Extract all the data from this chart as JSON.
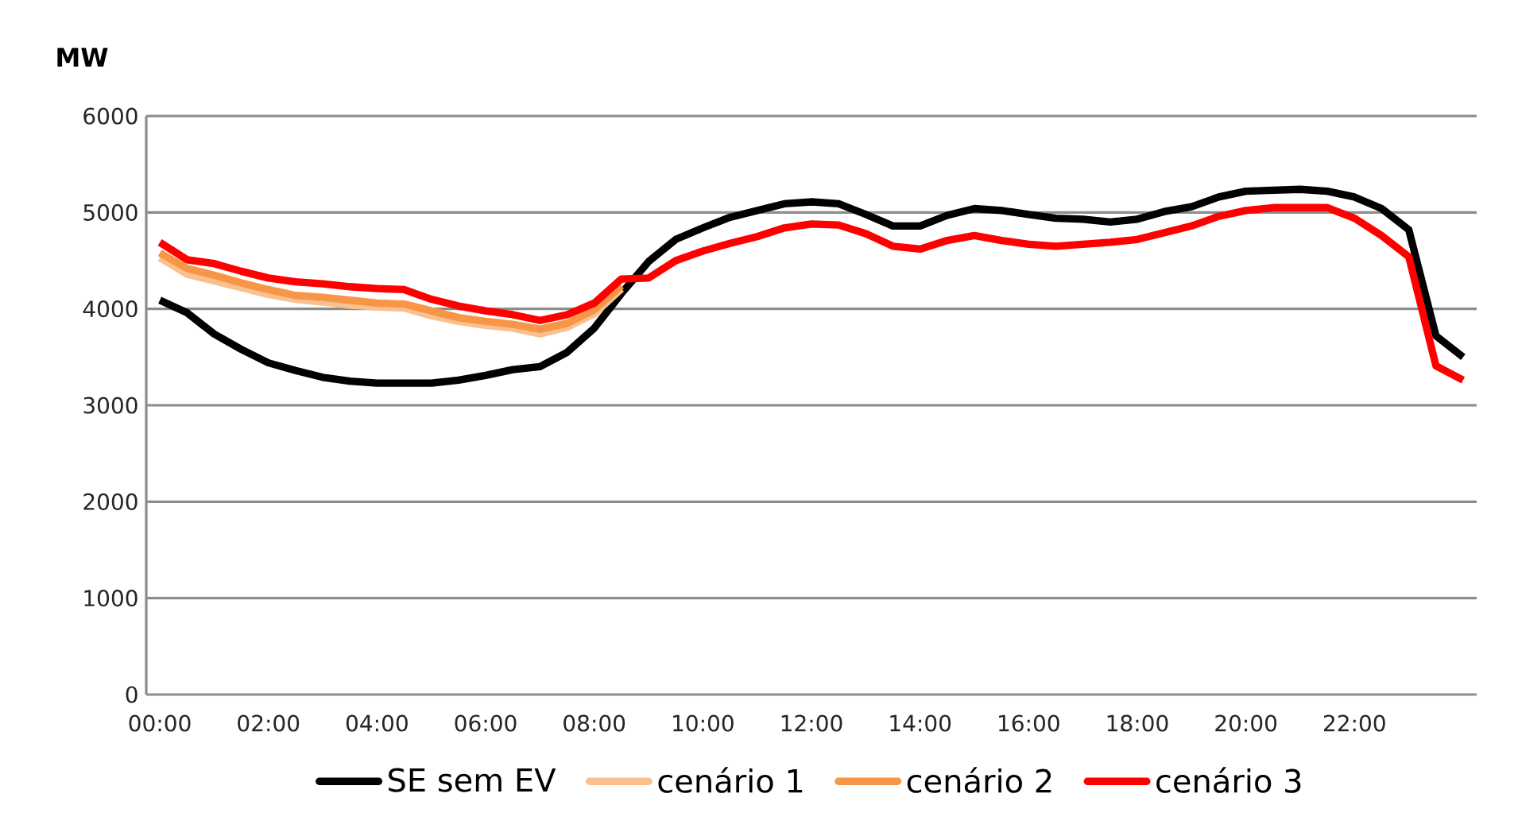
{
  "chart_data": {
    "type": "line",
    "ylabel": "MW",
    "x": [
      0,
      0.5,
      1,
      1.5,
      2,
      2.5,
      3,
      3.5,
      4,
      4.5,
      5,
      5.5,
      6,
      6.5,
      7,
      7.5,
      8,
      8.5,
      9,
      9.5,
      10,
      10.5,
      11,
      11.5,
      12,
      12.5,
      13,
      13.5,
      14,
      14.5,
      15,
      15.5,
      16,
      16.5,
      17,
      17.5,
      18,
      18.5,
      19,
      19.5,
      20,
      20.5,
      21,
      21.5,
      22,
      22.5,
      23,
      23.5,
      24
    ],
    "xlim": [
      -0.25,
      24.25
    ],
    "xticks": [
      {
        "value": 0,
        "label": "00:00"
      },
      {
        "value": 2,
        "label": "02:00"
      },
      {
        "value": 4,
        "label": "04:00"
      },
      {
        "value": 6,
        "label": "06:00"
      },
      {
        "value": 8,
        "label": "08:00"
      },
      {
        "value": 10,
        "label": "10:00"
      },
      {
        "value": 12,
        "label": "12:00"
      },
      {
        "value": 14,
        "label": "14:00"
      },
      {
        "value": 16,
        "label": "16:00"
      },
      {
        "value": 18,
        "label": "18:00"
      },
      {
        "value": 20,
        "label": "20:00"
      },
      {
        "value": 22,
        "label": "22:00"
      }
    ],
    "ylim": [
      0,
      6000
    ],
    "yticks": [
      0,
      1000,
      2000,
      3000,
      4000,
      5000,
      6000
    ],
    "grid": "y",
    "legend": "bottom",
    "line_style": "solid",
    "marker": "none",
    "series": [
      {
        "name": "SE sem EV",
        "color": "#000000",
        "values": [
          4090,
          3960,
          3740,
          3580,
          3440,
          3360,
          3290,
          3250,
          3230,
          3230,
          3230,
          3260,
          3310,
          3370,
          3400,
          3550,
          3800,
          4160,
          4490,
          4720,
          4840,
          4950,
          5020,
          5090,
          5110,
          5090,
          4980,
          4860,
          4860,
          4970,
          5040,
          5020,
          4980,
          4940,
          4930,
          4900,
          4930,
          5010,
          5060,
          5160,
          5220,
          5230,
          5240,
          5220,
          5160,
          5040,
          4820,
          3720,
          3500
        ]
      },
      {
        "name": "cenário 1",
        "color": "#fac090",
        "values": [
          4530,
          4360,
          4290,
          4220,
          4150,
          4100,
          4070,
          4040,
          4020,
          4010,
          3930,
          3870,
          3830,
          3800,
          3740,
          3810,
          3950,
          4210,
          null,
          null,
          null,
          null,
          null,
          null,
          null,
          null,
          null,
          null,
          null,
          null,
          null,
          null,
          null,
          null,
          null,
          null,
          null,
          null,
          null,
          null,
          null,
          null,
          null,
          null,
          null,
          null,
          null,
          null,
          null
        ]
      },
      {
        "name": "cenário 2",
        "color": "#f79646",
        "values": [
          4580,
          4420,
          4350,
          4270,
          4200,
          4140,
          4120,
          4090,
          4060,
          4050,
          3980,
          3910,
          3870,
          3840,
          3790,
          3850,
          3990,
          4240,
          null,
          null,
          null,
          null,
          null,
          null,
          null,
          null,
          null,
          null,
          null,
          null,
          null,
          null,
          null,
          null,
          null,
          null,
          null,
          null,
          null,
          null,
          null,
          null,
          null,
          null,
          null,
          null,
          null,
          null,
          null
        ]
      },
      {
        "name": "cenário 3",
        "color": "#ff0000",
        "values": [
          4690,
          4510,
          4470,
          4390,
          4320,
          4280,
          4260,
          4230,
          4210,
          4200,
          4100,
          4030,
          3980,
          3940,
          3880,
          3940,
          4060,
          4310,
          4320,
          4500,
          4600,
          4680,
          4750,
          4840,
          4880,
          4870,
          4780,
          4650,
          4620,
          4710,
          4760,
          4710,
          4670,
          4650,
          4670,
          4690,
          4720,
          4790,
          4860,
          4960,
          5020,
          5050,
          5050,
          5050,
          4940,
          4760,
          4540,
          3410,
          3260
        ]
      }
    ]
  }
}
